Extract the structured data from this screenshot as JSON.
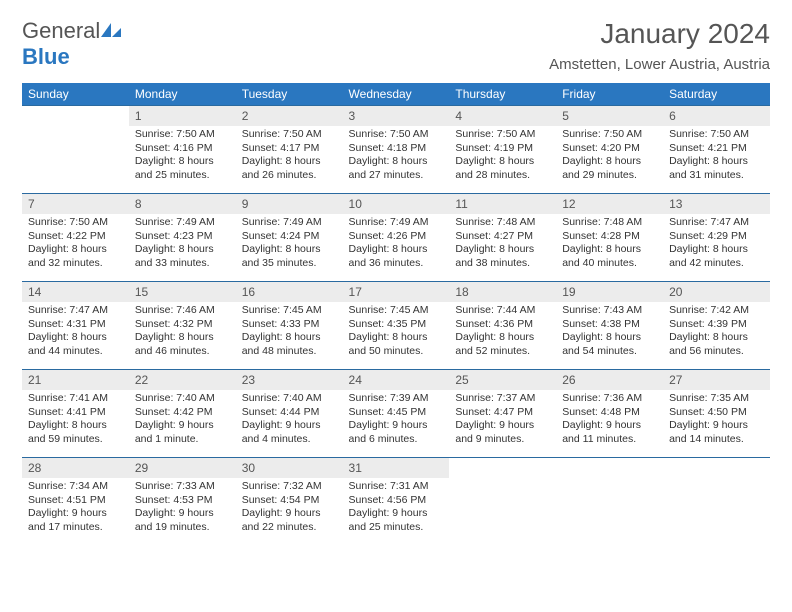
{
  "logo": {
    "text1": "General",
    "text2": "Blue"
  },
  "title": "January 2024",
  "location": "Amstetten, Lower Austria, Austria",
  "colors": {
    "header_bg": "#2a77c0",
    "header_text": "#ffffff",
    "daynum_bg": "#ececec",
    "border": "#2a6aa0",
    "text": "#333333",
    "page_bg": "#ffffff"
  },
  "weekdays": [
    "Sunday",
    "Monday",
    "Tuesday",
    "Wednesday",
    "Thursday",
    "Friday",
    "Saturday"
  ],
  "leading_blanks": 1,
  "days": [
    {
      "n": "1",
      "sr": "7:50 AM",
      "ss": "4:16 PM",
      "dl": "8 hours and 25 minutes."
    },
    {
      "n": "2",
      "sr": "7:50 AM",
      "ss": "4:17 PM",
      "dl": "8 hours and 26 minutes."
    },
    {
      "n": "3",
      "sr": "7:50 AM",
      "ss": "4:18 PM",
      "dl": "8 hours and 27 minutes."
    },
    {
      "n": "4",
      "sr": "7:50 AM",
      "ss": "4:19 PM",
      "dl": "8 hours and 28 minutes."
    },
    {
      "n": "5",
      "sr": "7:50 AM",
      "ss": "4:20 PM",
      "dl": "8 hours and 29 minutes."
    },
    {
      "n": "6",
      "sr": "7:50 AM",
      "ss": "4:21 PM",
      "dl": "8 hours and 31 minutes."
    },
    {
      "n": "7",
      "sr": "7:50 AM",
      "ss": "4:22 PM",
      "dl": "8 hours and 32 minutes."
    },
    {
      "n": "8",
      "sr": "7:49 AM",
      "ss": "4:23 PM",
      "dl": "8 hours and 33 minutes."
    },
    {
      "n": "9",
      "sr": "7:49 AM",
      "ss": "4:24 PM",
      "dl": "8 hours and 35 minutes."
    },
    {
      "n": "10",
      "sr": "7:49 AM",
      "ss": "4:26 PM",
      "dl": "8 hours and 36 minutes."
    },
    {
      "n": "11",
      "sr": "7:48 AM",
      "ss": "4:27 PM",
      "dl": "8 hours and 38 minutes."
    },
    {
      "n": "12",
      "sr": "7:48 AM",
      "ss": "4:28 PM",
      "dl": "8 hours and 40 minutes."
    },
    {
      "n": "13",
      "sr": "7:47 AM",
      "ss": "4:29 PM",
      "dl": "8 hours and 42 minutes."
    },
    {
      "n": "14",
      "sr": "7:47 AM",
      "ss": "4:31 PM",
      "dl": "8 hours and 44 minutes."
    },
    {
      "n": "15",
      "sr": "7:46 AM",
      "ss": "4:32 PM",
      "dl": "8 hours and 46 minutes."
    },
    {
      "n": "16",
      "sr": "7:45 AM",
      "ss": "4:33 PM",
      "dl": "8 hours and 48 minutes."
    },
    {
      "n": "17",
      "sr": "7:45 AM",
      "ss": "4:35 PM",
      "dl": "8 hours and 50 minutes."
    },
    {
      "n": "18",
      "sr": "7:44 AM",
      "ss": "4:36 PM",
      "dl": "8 hours and 52 minutes."
    },
    {
      "n": "19",
      "sr": "7:43 AM",
      "ss": "4:38 PM",
      "dl": "8 hours and 54 minutes."
    },
    {
      "n": "20",
      "sr": "7:42 AM",
      "ss": "4:39 PM",
      "dl": "8 hours and 56 minutes."
    },
    {
      "n": "21",
      "sr": "7:41 AM",
      "ss": "4:41 PM",
      "dl": "8 hours and 59 minutes."
    },
    {
      "n": "22",
      "sr": "7:40 AM",
      "ss": "4:42 PM",
      "dl": "9 hours and 1 minute."
    },
    {
      "n": "23",
      "sr": "7:40 AM",
      "ss": "4:44 PM",
      "dl": "9 hours and 4 minutes."
    },
    {
      "n": "24",
      "sr": "7:39 AM",
      "ss": "4:45 PM",
      "dl": "9 hours and 6 minutes."
    },
    {
      "n": "25",
      "sr": "7:37 AM",
      "ss": "4:47 PM",
      "dl": "9 hours and 9 minutes."
    },
    {
      "n": "26",
      "sr": "7:36 AM",
      "ss": "4:48 PM",
      "dl": "9 hours and 11 minutes."
    },
    {
      "n": "27",
      "sr": "7:35 AM",
      "ss": "4:50 PM",
      "dl": "9 hours and 14 minutes."
    },
    {
      "n": "28",
      "sr": "7:34 AM",
      "ss": "4:51 PM",
      "dl": "9 hours and 17 minutes."
    },
    {
      "n": "29",
      "sr": "7:33 AM",
      "ss": "4:53 PM",
      "dl": "9 hours and 19 minutes."
    },
    {
      "n": "30",
      "sr": "7:32 AM",
      "ss": "4:54 PM",
      "dl": "9 hours and 22 minutes."
    },
    {
      "n": "31",
      "sr": "7:31 AM",
      "ss": "4:56 PM",
      "dl": "9 hours and 25 minutes."
    }
  ],
  "labels": {
    "sunrise": "Sunrise:",
    "sunset": "Sunset:",
    "daylight": "Daylight:"
  }
}
